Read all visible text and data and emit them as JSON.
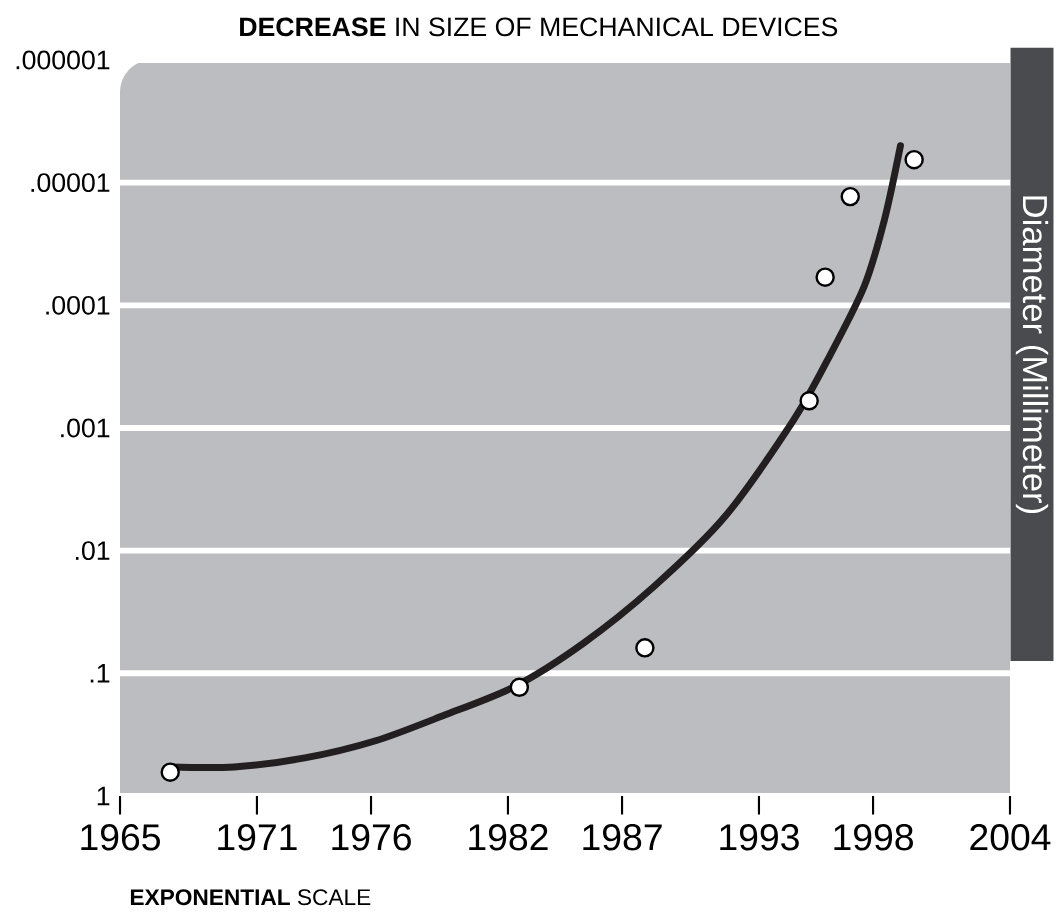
{
  "chart_data": {
    "type": "scatter",
    "title": "**DECREASE** IN SIZE OF MECHANICAL DEVICES",
    "ylabel": "Diameter (Millimeter)",
    "annotations": [
      "**EXPONENTIAL** SCALE"
    ],
    "log": "y",
    "grid": "y",
    "marker": "circle",
    "xlim": [
      1965,
      2004
    ],
    "xticks": [
      1965,
      1971,
      1976,
      1982,
      1987,
      1993,
      1998,
      2004
    ],
    "ylim": [
      1,
      1e-06
    ],
    "yticks": [
      {
        "value": 1,
        "label": "1"
      },
      {
        "value": 0.1,
        "label": ".1"
      },
      {
        "value": 0.01,
        "label": ".01"
      },
      {
        "value": 0.001,
        "label": ".001"
      },
      {
        "value": 0.0001,
        "label": ".0001"
      },
      {
        "value": 1e-05,
        "label": ".00001"
      },
      {
        "value": 1e-06,
        "label": ".000001"
      }
    ],
    "series": [
      {
        "color": "#ffffff",
        "x": [
          1967.2,
          1982.5,
          1988.0,
          1995.2,
          1995.9,
          1997.0,
          1999.8
        ],
        "values": [
          0.64,
          0.13,
          0.062,
          0.0006,
          5.9e-05,
          1.3e-05,
          6.5e-06
        ]
      },
      {
        "type": "line",
        "color": "#231f20",
        "marker": "none",
        "x": [
          1967.2,
          1970.0,
          1973.1,
          1976.2,
          1979.2,
          1982.3,
          1985.3,
          1988.4,
          1991.5,
          1994.5,
          1996.0,
          1997.6,
          1998.5,
          1999.2
        ],
        "values": [
          0.58,
          0.58,
          0.49,
          0.355,
          0.22,
          0.128,
          0.057,
          0.0196,
          0.0053,
          0.00087,
          0.00028,
          7.1e-05,
          2e-05,
          5e-06
        ]
      }
    ]
  }
}
